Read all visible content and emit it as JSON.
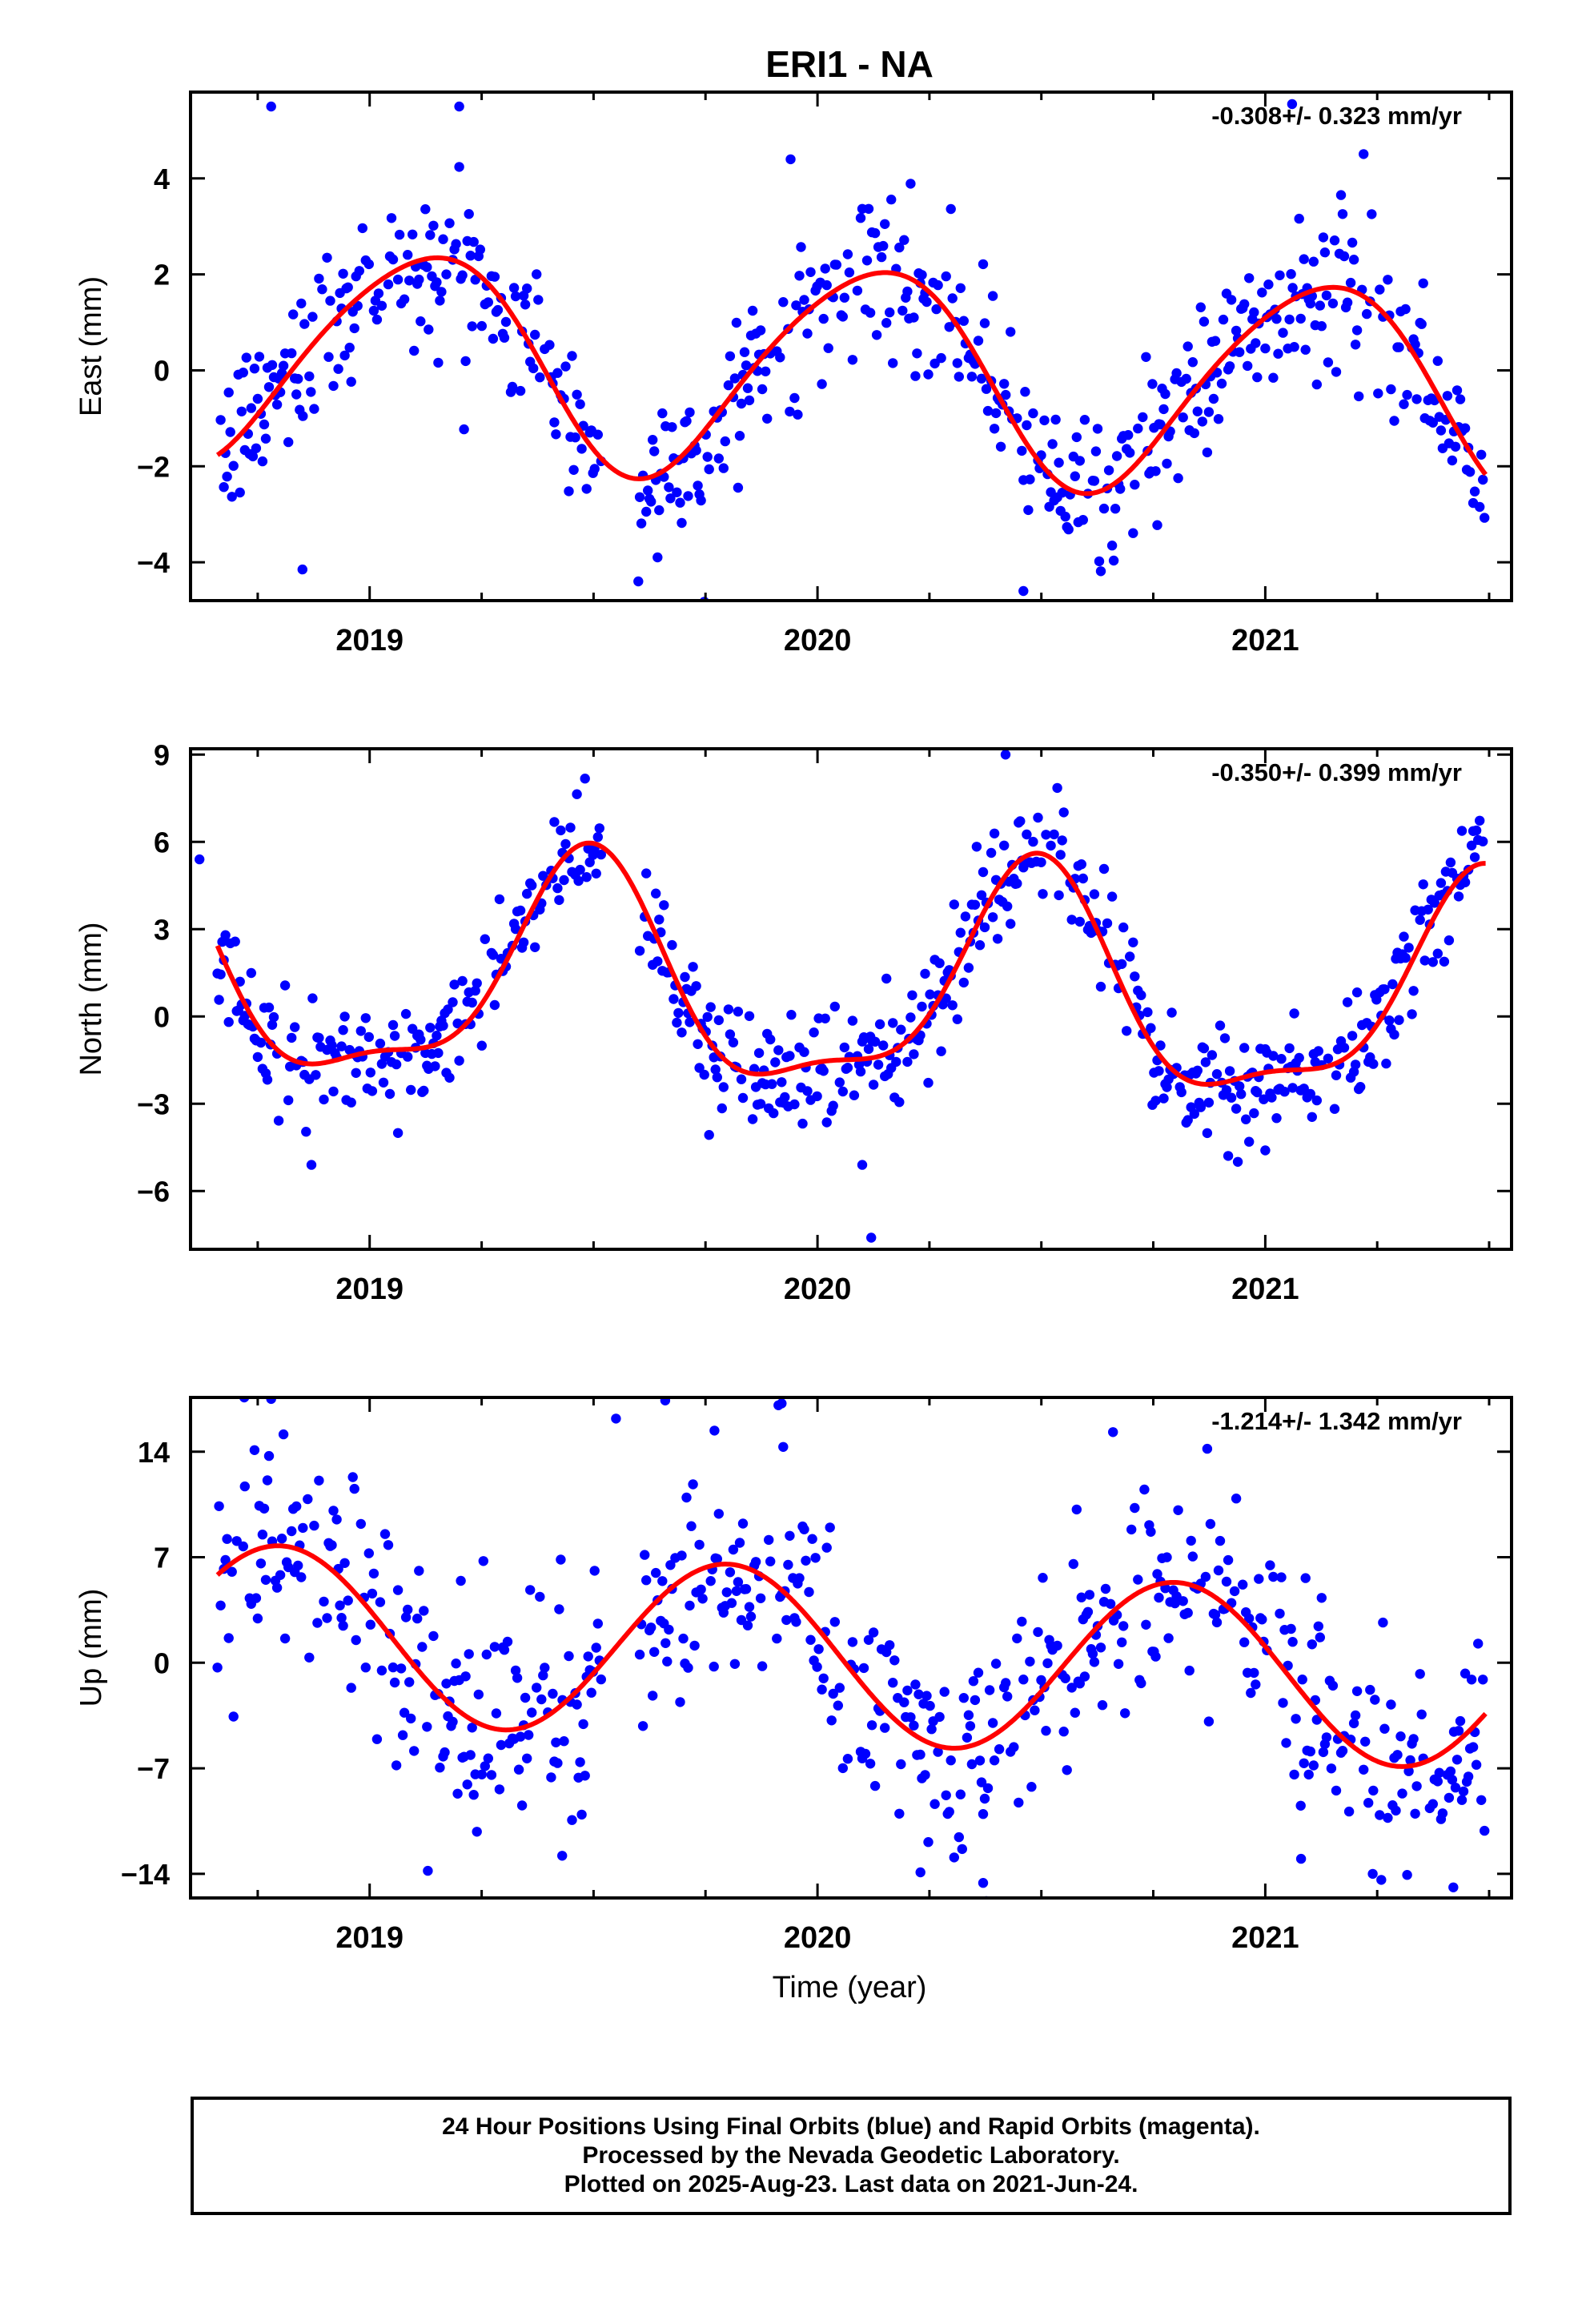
{
  "title": "ERI1 - NA",
  "xlabel": "Time (year)",
  "colors": {
    "points": "#0000ff",
    "fit": "#ff0000",
    "frame": "#000000"
  },
  "footer": {
    "line1": "24 Hour Positions Using Final Orbits (blue) and Rapid Orbits (magenta).",
    "line2": "Processed by the Nevada Geodetic Laboratory.",
    "line3": "Plotted on 2025-Aug-23. Last data on 2021-Jun-24."
  },
  "chart_data": [
    {
      "type": "scatter",
      "ylabel": "East (mm)",
      "rate_label": "-0.308+/- 0.323 mm/yr",
      "xlim": [
        2018.6,
        2021.55
      ],
      "ylim": [
        -4.8,
        5.8
      ],
      "x_ticks": [
        2019,
        2020,
        2021
      ],
      "y_ticks": [
        -4,
        -2,
        0,
        2,
        4
      ],
      "fit": {
        "mean": 0.0,
        "trend": -0.308,
        "ref_year": 2020.0,
        "annual_amp": 2.2,
        "annual_phase": 2019.12,
        "semiannual_amp": 0.25,
        "semiannual_phase": 2019.3
      },
      "scatter_sd": 0.85,
      "outliers": [
        [
          2018.78,
          5.5
        ],
        [
          2019.2,
          5.5
        ],
        [
          2018.85,
          -4.15
        ],
        [
          2019.6,
          -4.4
        ],
        [
          2019.94,
          4.4
        ],
        [
          2020.46,
          -4.6
        ],
        [
          2021.06,
          5.55
        ]
      ]
    },
    {
      "type": "scatter",
      "ylabel": "North (mm)",
      "rate_label": "-0.350+/- 0.399 mm/yr",
      "xlim": [
        2018.6,
        2021.55
      ],
      "ylim": [
        -8.0,
        9.2
      ],
      "x_ticks": [
        2019,
        2020,
        2021
      ],
      "y_ticks": [
        -6,
        -3,
        0,
        3,
        6,
        9
      ],
      "fit": {
        "mean": 0.9,
        "trend": -0.35,
        "ref_year": 2020.0,
        "annual_amp": 3.7,
        "annual_phase": 2019.48,
        "semiannual_amp": 1.2,
        "semiannual_phase": 2019.0
      },
      "scatter_sd": 1.0,
      "outliers": [
        [
          2018.62,
          5.4
        ],
        [
          2018.87,
          -5.1
        ],
        [
          2020.1,
          -5.1
        ],
        [
          2020.12,
          -7.6
        ],
        [
          2020.42,
          9.0
        ],
        [
          2021.0,
          -4.6
        ]
      ]
    },
    {
      "type": "scatter",
      "ylabel": "Up (mm)",
      "rate_label": "-1.214+/- 1.342 mm/yr",
      "xlim": [
        2018.6,
        2021.55
      ],
      "ylim": [
        -15.6,
        17.6
      ],
      "x_ticks": [
        2019,
        2020,
        2021
      ],
      "y_ticks": [
        -14,
        -7,
        0,
        7,
        14
      ],
      "fit": {
        "mean": 0.5,
        "trend": -1.214,
        "ref_year": 2020.0,
        "annual_amp": 5.8,
        "annual_phase": 2018.8,
        "semiannual_amp": 0.0,
        "semiannual_phase": 2019.0
      },
      "scatter_sd": 3.8,
      "outliers": [
        [
          2018.72,
          17.6
        ],
        [
          2018.78,
          17.5
        ],
        [
          2019.55,
          16.2
        ],
        [
          2019.66,
          17.4
        ],
        [
          2019.77,
          15.4
        ],
        [
          2019.92,
          17.2
        ],
        [
          2019.13,
          -13.8
        ],
        [
          2019.43,
          -12.8
        ],
        [
          2020.23,
          -13.9
        ],
        [
          2020.37,
          -14.6
        ],
        [
          2021.08,
          -13.0
        ],
        [
          2021.24,
          -14.0
        ],
        [
          2021.42,
          -14.9
        ],
        [
          2020.66,
          15.3
        ]
      ]
    }
  ]
}
